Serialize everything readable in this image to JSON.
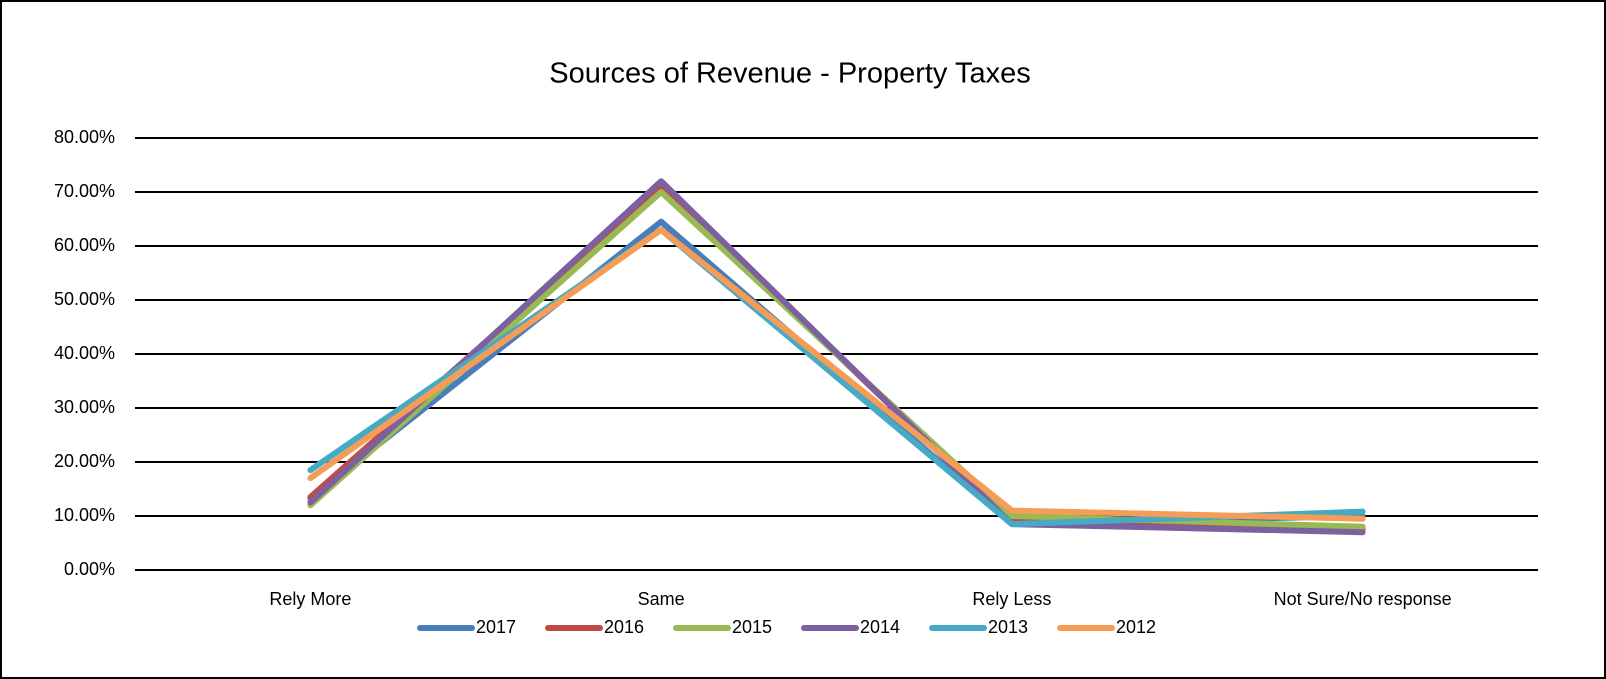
{
  "chart_data": {
    "type": "line",
    "title": "Sources of Revenue - Property Taxes",
    "categories": [
      "Rely More",
      "Same",
      "Rely Less",
      "Not Sure/No response"
    ],
    "series": [
      {
        "name": "2017",
        "color": "#4a7ebb",
        "values": [
          13.3,
          64.5,
          8.5,
          10
        ]
      },
      {
        "name": "2016",
        "color": "#be4b48",
        "values": [
          13.5,
          71,
          9,
          7.5
        ]
      },
      {
        "name": "2015",
        "color": "#98b954",
        "values": [
          12,
          70,
          10,
          8
        ]
      },
      {
        "name": "2014",
        "color": "#7d60a0",
        "values": [
          12.5,
          72,
          8.5,
          7
        ]
      },
      {
        "name": "2013",
        "color": "#46aac5",
        "values": [
          18.5,
          63,
          8.5,
          10.8
        ]
      },
      {
        "name": "2012",
        "color": "#f59d56",
        "values": [
          17,
          63,
          11,
          9.5
        ]
      }
    ],
    "ylim": [
      0,
      80
    ],
    "yticks": [
      {
        "value": 0,
        "label": "0.00%"
      },
      {
        "value": 10,
        "label": "10.00%"
      },
      {
        "value": 20,
        "label": "20.00%"
      },
      {
        "value": 30,
        "label": "30.00%"
      },
      {
        "value": 40,
        "label": "40.00%"
      },
      {
        "value": 50,
        "label": "50.00%"
      },
      {
        "value": 60,
        "label": "60.00%"
      },
      {
        "value": 70,
        "label": "70.00%"
      },
      {
        "value": 80,
        "label": "80.00%"
      }
    ],
    "grid": true,
    "legend": "bottom"
  }
}
